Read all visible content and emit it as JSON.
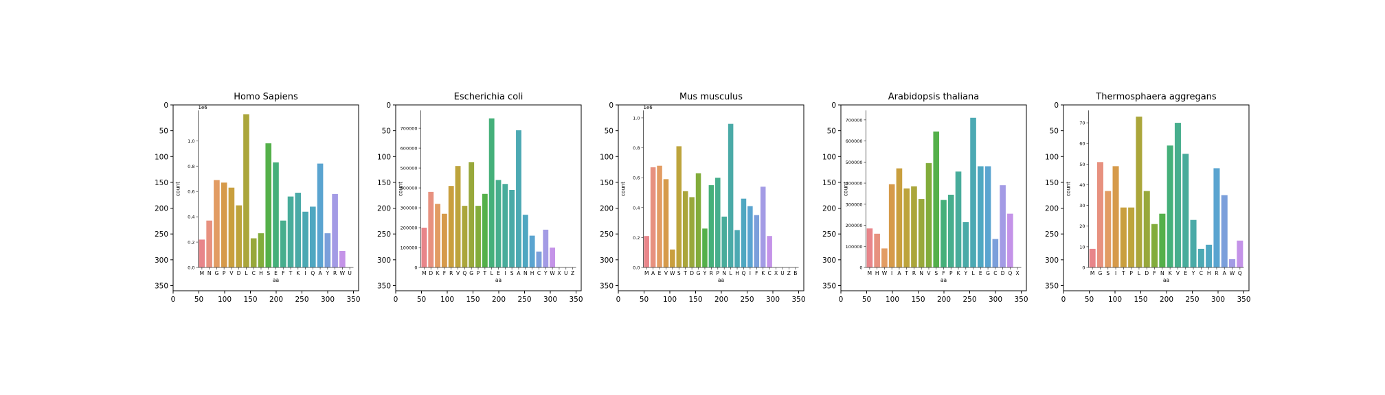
{
  "chart_data": [
    {
      "type": "bar",
      "title": "Homo Sapiens",
      "xlabel": "aa",
      "ylabel": "count",
      "scale_label": "1e6",
      "categories": [
        "M",
        "N",
        "G",
        "P",
        "V",
        "D",
        "L",
        "C",
        "H",
        "S",
        "E",
        "F",
        "T",
        "K",
        "I",
        "Q",
        "A",
        "Y",
        "R",
        "W",
        "U"
      ],
      "values": [
        0.22,
        0.37,
        0.69,
        0.67,
        0.63,
        0.49,
        1.21,
        0.23,
        0.27,
        0.98,
        0.83,
        0.37,
        0.56,
        0.59,
        0.44,
        0.48,
        0.82,
        0.27,
        0.58,
        0.13,
        0.0
      ],
      "ylim": [
        0,
        1.24
      ],
      "yticks": [
        0.0,
        0.2,
        0.4,
        0.6,
        0.8,
        1.0
      ],
      "ytick_labels": [
        "0.0",
        "0.2",
        "0.4",
        "0.6",
        "0.8",
        "1.0"
      ]
    },
    {
      "type": "bar",
      "title": "Escherichia coli",
      "xlabel": "aa",
      "ylabel": "count",
      "scale_label": "",
      "categories": [
        "M",
        "D",
        "K",
        "F",
        "R",
        "V",
        "Q",
        "G",
        "P",
        "T",
        "L",
        "E",
        "I",
        "S",
        "A",
        "N",
        "H",
        "C",
        "Y",
        "W",
        "X",
        "U",
        "Z"
      ],
      "values": [
        200000,
        380000,
        320000,
        270000,
        410000,
        510000,
        310000,
        530000,
        310000,
        370000,
        750000,
        440000,
        420000,
        390000,
        690000,
        265000,
        160000,
        80000,
        190000,
        100000,
        0,
        0,
        0
      ],
      "ylim": [
        0,
        790000
      ],
      "yticks": [
        0,
        100000,
        200000,
        300000,
        400000,
        500000,
        600000,
        700000
      ],
      "ytick_labels": [
        "0",
        "100000",
        "200000",
        "300000",
        "400000",
        "500000",
        "600000",
        "700000"
      ]
    },
    {
      "type": "bar",
      "title": "Mus musculus",
      "xlabel": "aa",
      "ylabel": "count",
      "scale_label": "1e6",
      "categories": [
        "M",
        "A",
        "E",
        "V",
        "W",
        "S",
        "T",
        "D",
        "G",
        "Y",
        "R",
        "P",
        "N",
        "L",
        "H",
        "Q",
        "I",
        "F",
        "K",
        "C",
        "X",
        "U",
        "Z",
        "B"
      ],
      "values": [
        0.21,
        0.67,
        0.68,
        0.59,
        0.12,
        0.81,
        0.51,
        0.47,
        0.63,
        0.26,
        0.55,
        0.6,
        0.34,
        0.96,
        0.25,
        0.46,
        0.41,
        0.35,
        0.54,
        0.21,
        0.0,
        0.0,
        0.0,
        0.0
      ],
      "ylim": [
        0,
        1.05
      ],
      "yticks": [
        0.0,
        0.2,
        0.4,
        0.6,
        0.8,
        1.0
      ],
      "ytick_labels": [
        "0.0",
        "0.2",
        "0.4",
        "0.6",
        "0.8",
        "1.0"
      ]
    },
    {
      "type": "bar",
      "title": "Arabidopsis thaliana",
      "xlabel": "aa",
      "ylabel": "count",
      "scale_label": "",
      "categories": [
        "M",
        "H",
        "W",
        "I",
        "A",
        "T",
        "R",
        "N",
        "V",
        "S",
        "F",
        "P",
        "K",
        "Y",
        "L",
        "E",
        "G",
        "C",
        "D",
        "Q",
        "X"
      ],
      "values": [
        185000,
        160000,
        90000,
        395000,
        470000,
        375000,
        385000,
        325000,
        495000,
        645000,
        320000,
        345000,
        455000,
        215000,
        710000,
        480000,
        480000,
        135000,
        390000,
        255000,
        0
      ],
      "ylim": [
        0,
        745000
      ],
      "yticks": [
        0,
        100000,
        200000,
        300000,
        400000,
        500000,
        600000,
        700000
      ],
      "ytick_labels": [
        "0",
        "100000",
        "200000",
        "300000",
        "400000",
        "500000",
        "600000",
        "700000"
      ]
    },
    {
      "type": "bar",
      "title": "Thermosphaera aggregans",
      "xlabel": "aa",
      "ylabel": "count",
      "scale_label": "",
      "categories": [
        "M",
        "G",
        "S",
        "I",
        "T",
        "P",
        "L",
        "D",
        "F",
        "N",
        "K",
        "V",
        "E",
        "Y",
        "C",
        "H",
        "R",
        "A",
        "W",
        "Q"
      ],
      "values": [
        9,
        51,
        37,
        49,
        29,
        29,
        73,
        37,
        21,
        26,
        59,
        70,
        55,
        23,
        9,
        11,
        48,
        35,
        4,
        13
      ],
      "ylim": [
        0,
        76
      ],
      "yticks": [
        0,
        10,
        20,
        30,
        40,
        50,
        60,
        70
      ],
      "ytick_labels": [
        "0",
        "10",
        "20",
        "30",
        "40",
        "50",
        "60",
        "70"
      ]
    }
  ],
  "outer_axis": {
    "x_ticks": [
      "0",
      "50",
      "100",
      "150",
      "200",
      "250",
      "300",
      "350"
    ],
    "y_ticks": [
      "0",
      "50",
      "100",
      "150",
      "200",
      "250",
      "300",
      "350"
    ]
  },
  "palette": [
    "#e8858a",
    "#e7917f",
    "#e29c63",
    "#d69a4a",
    "#c99f3e",
    "#bda43c",
    "#aba63b",
    "#98a83b",
    "#82ac3b",
    "#54b04a",
    "#45b07a",
    "#47ae8d",
    "#48ac9b",
    "#4aaaa7",
    "#4ca9b3",
    "#4fa7c1",
    "#5aa4d0",
    "#7b9fdb",
    "#a39be5",
    "#c493e8",
    "#dd8de1",
    "#e18cd2",
    "#e38cc2",
    "#e58ab3"
  ]
}
